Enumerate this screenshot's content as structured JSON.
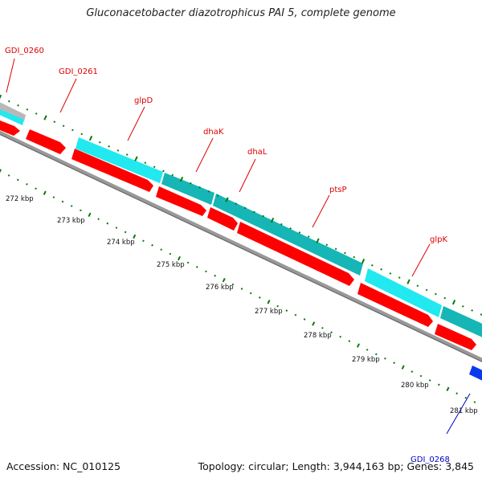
{
  "title": "Gluconacetobacter diazotrophicus PAI 5, complete genome",
  "footer": {
    "accession": "Accession: NC_010125",
    "summary": "Topology: circular; Length: 3,944,163 bp; Genes: 3,845"
  },
  "colors": {
    "forward_cds": "#ff0000",
    "reverse_cds_light": "#22e8f0",
    "reverse_cds_dark": "#16b6b6",
    "gene_label": "#dd0000",
    "other_label": "#0000cc",
    "tick": "#0a7a0a",
    "backbone": "#888888"
  },
  "scale_labels": [
    "272 kbp",
    "273 kbp",
    "274 kbp",
    "275 kbp",
    "276 kbp",
    "277 kbp",
    "278 kbp",
    "279 kbp",
    "280 kbp",
    "281 kbp"
  ],
  "gene_labels": [
    {
      "name": "GDI_0260",
      "strand": "forward"
    },
    {
      "name": "GDI_0261",
      "strand": "forward"
    },
    {
      "name": "glpD",
      "strand": "forward"
    },
    {
      "name": "dhaK",
      "strand": "forward"
    },
    {
      "name": "dhaL",
      "strand": "forward"
    },
    {
      "name": "ptsP",
      "strand": "forward"
    },
    {
      "name": "glpK",
      "strand": "forward"
    },
    {
      "name": "GDI_0268",
      "strand": "reverse"
    }
  ]
}
